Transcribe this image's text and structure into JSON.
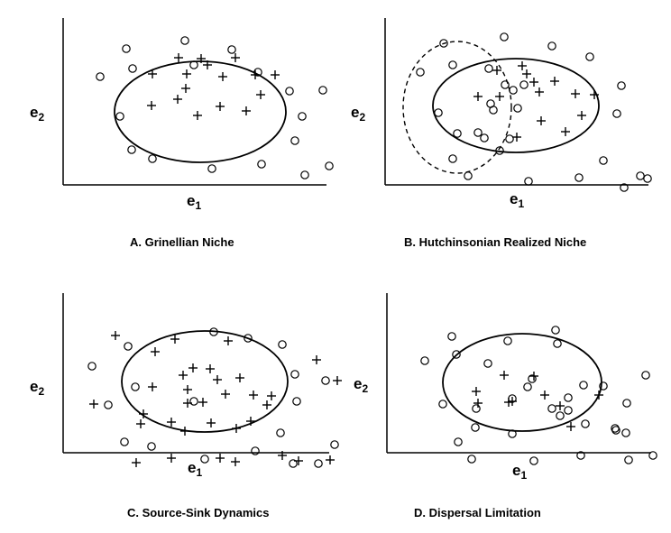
{
  "figure": {
    "axis_x_base": "e",
    "axis_x_sub": "1",
    "axis_y_base": "e",
    "axis_y_sub": "2",
    "panels": [
      {
        "id": "A",
        "caption": "A.  Grinellian Niche",
        "has_dashed_ellipse": false,
        "plus_marks": [
          [
            113,
            24
          ],
          [
            138,
            25
          ],
          [
            145,
            32
          ],
          [
            176,
            24
          ],
          [
            84,
            42
          ],
          [
            122,
            42
          ],
          [
            162,
            45
          ],
          [
            198,
            43
          ],
          [
            220,
            43
          ],
          [
            121,
            58
          ],
          [
            112,
            70
          ],
          [
            83,
            77
          ],
          [
            134,
            88
          ],
          [
            159,
            78
          ],
          [
            188,
            83
          ],
          [
            204,
            65
          ]
        ],
        "open_circles": [
          [
            55,
            14
          ],
          [
            120,
            5
          ],
          [
            172,
            15
          ],
          [
            62,
            36
          ],
          [
            26,
            45
          ],
          [
            201,
            40
          ],
          [
            130,
            32
          ],
          [
            236,
            61
          ],
          [
            273,
            60
          ],
          [
            48,
            89
          ],
          [
            250,
            89
          ],
          [
            61,
            126
          ],
          [
            84,
            136
          ],
          [
            150,
            147
          ],
          [
            205,
            142
          ],
          [
            242,
            116
          ],
          [
            280,
            144
          ],
          [
            253,
            154
          ]
        ]
      },
      {
        "id": "B",
        "caption": "B.  Hutchinsonian Realized Niche",
        "has_dashed_ellipse": true,
        "plus_marks": [
          [
            135,
            33
          ],
          [
            107,
            38
          ],
          [
            140,
            42
          ],
          [
            148,
            51
          ],
          [
            171,
            50
          ],
          [
            154,
            62
          ],
          [
            194,
            64
          ],
          [
            215,
            65
          ],
          [
            86,
            67
          ],
          [
            110,
            67
          ],
          [
            201,
            88
          ],
          [
            156,
            94
          ],
          [
            183,
            106
          ],
          [
            129,
            112
          ]
        ],
        "open_circles": [
          [
            48,
            8
          ],
          [
            115,
            1
          ],
          [
            168,
            11
          ],
          [
            58,
            32
          ],
          [
            22,
            40
          ],
          [
            210,
            23
          ],
          [
            98,
            36
          ],
          [
            116,
            54
          ],
          [
            125,
            60
          ],
          [
            137,
            54
          ],
          [
            245,
            55
          ],
          [
            100,
            75
          ],
          [
            103,
            82
          ],
          [
            130,
            80
          ],
          [
            42,
            85
          ],
          [
            240,
            86
          ],
          [
            63,
            108
          ],
          [
            86,
            107
          ],
          [
            93,
            113
          ],
          [
            110,
            127
          ],
          [
            121,
            114
          ],
          [
            225,
            138
          ],
          [
            58,
            136
          ],
          [
            75,
            155
          ],
          [
            142,
            161
          ],
          [
            198,
            157
          ],
          [
            266,
            155
          ],
          [
            248,
            168
          ],
          [
            274,
            158
          ]
        ]
      },
      {
        "id": "C",
        "caption": "C.  Source-Sink Dynamics",
        "has_dashed_ellipse": false,
        "plus_marks": [
          [
            43,
            27
          ],
          [
            109,
            31
          ],
          [
            168,
            33
          ],
          [
            87,
            45
          ],
          [
            266,
            54
          ],
          [
            129,
            63
          ],
          [
            148,
            64
          ],
          [
            118,
            71
          ],
          [
            84,
            84
          ],
          [
            156,
            76
          ],
          [
            181,
            74
          ],
          [
            123,
            87
          ],
          [
            165,
            92
          ],
          [
            196,
            93
          ],
          [
            216,
            94
          ],
          [
            289,
            77
          ],
          [
            123,
            102
          ],
          [
            19,
            103
          ],
          [
            140,
            101
          ],
          [
            211,
            104
          ],
          [
            74,
            114
          ],
          [
            71,
            125
          ],
          [
            105,
            123
          ],
          [
            149,
            124
          ],
          [
            193,
            122
          ],
          [
            177,
            130
          ],
          [
            120,
            133
          ],
          [
            105,
            163
          ],
          [
            66,
            168
          ],
          [
            159,
            163
          ],
          [
            228,
            160
          ],
          [
            176,
            167
          ],
          [
            246,
            166
          ],
          [
            281,
            165
          ]
        ],
        "open_circles": [
          [
            152,
            23
          ],
          [
            190,
            30
          ],
          [
            57,
            39
          ],
          [
            228,
            37
          ],
          [
            17,
            61
          ],
          [
            242,
            70
          ],
          [
            276,
            77
          ],
          [
            65,
            84
          ],
          [
            130,
            100
          ],
          [
            35,
            104
          ],
          [
            244,
            100
          ],
          [
            226,
            135
          ],
          [
            53,
            145
          ],
          [
            83,
            150
          ],
          [
            286,
            148
          ],
          [
            198,
            155
          ],
          [
            142,
            164
          ],
          [
            240,
            169
          ],
          [
            268,
            169
          ]
        ]
      },
      {
        "id": "D",
        "caption": "D.  Dispersal Limitation",
        "has_dashed_ellipse": false,
        "plus_marks": [
          [
            115,
            71
          ],
          [
            148,
            72
          ],
          [
            84,
            89
          ],
          [
            160,
            93
          ],
          [
            220,
            93
          ],
          [
            120,
            101
          ],
          [
            177,
            105
          ],
          [
            124,
            100
          ],
          [
            86,
            102
          ],
          [
            189,
            128
          ]
        ],
        "open_circles": [
          [
            57,
            28
          ],
          [
            172,
            21
          ],
          [
            119,
            33
          ],
          [
            62,
            48
          ],
          [
            27,
            55
          ],
          [
            174,
            36
          ],
          [
            97,
            58
          ],
          [
            146,
            75
          ],
          [
            141,
            84
          ],
          [
            124,
            97
          ],
          [
            186,
            96
          ],
          [
            203,
            82
          ],
          [
            225,
            83
          ],
          [
            272,
            71
          ],
          [
            47,
            103
          ],
          [
            84,
            108
          ],
          [
            168,
            108
          ],
          [
            186,
            110
          ],
          [
            177,
            116
          ],
          [
            83,
            129
          ],
          [
            251,
            102
          ],
          [
            239,
            132
          ],
          [
            64,
            145
          ],
          [
            124,
            136
          ],
          [
            205,
            125
          ],
          [
            238,
            130
          ],
          [
            250,
            135
          ],
          [
            79,
            164
          ],
          [
            148,
            166
          ],
          [
            200,
            160
          ],
          [
            253,
            165
          ],
          [
            280,
            160
          ]
        ]
      }
    ]
  }
}
